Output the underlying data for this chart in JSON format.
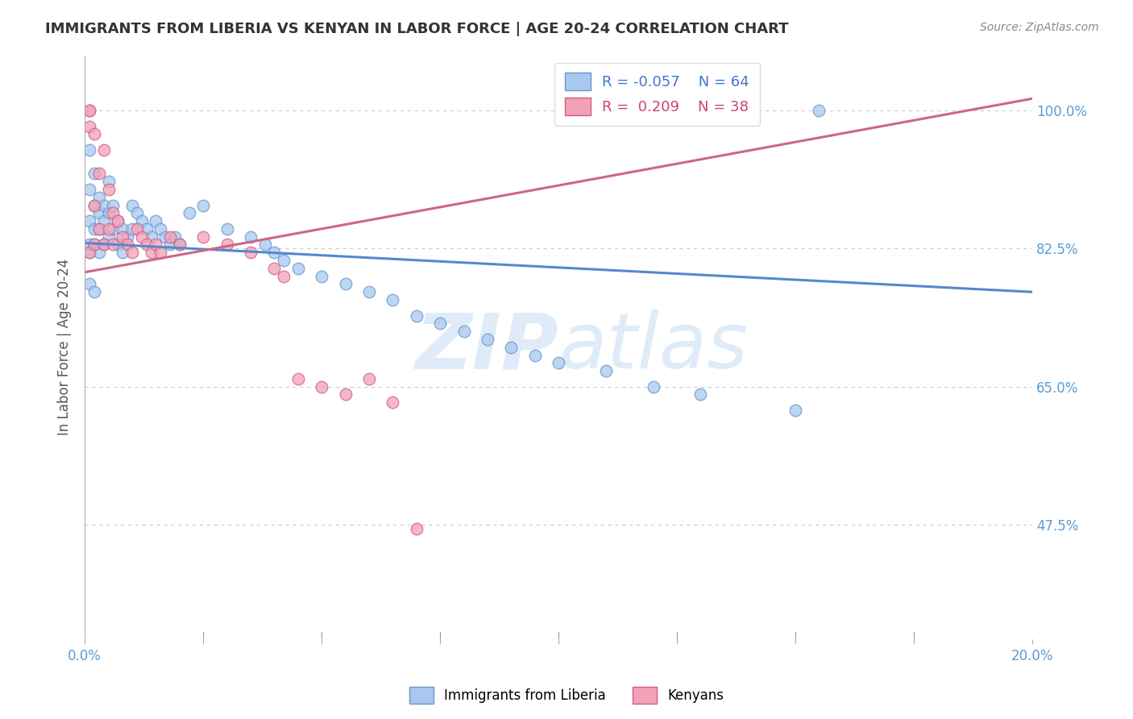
{
  "title": "IMMIGRANTS FROM LIBERIA VS KENYAN IN LABOR FORCE | AGE 20-24 CORRELATION CHART",
  "source": "Source: ZipAtlas.com",
  "ylabel": "In Labor Force | Age 20-24",
  "ytick_vals": [
    0.475,
    0.65,
    0.825,
    1.0
  ],
  "ytick_labels": [
    "47.5%",
    "65.0%",
    "82.5%",
    "100.0%"
  ],
  "xlim": [
    0.0,
    0.2
  ],
  "ylim": [
    0.33,
    1.07
  ],
  "legend_R_liberia": "-0.057",
  "legend_N_liberia": "64",
  "legend_R_kenyan": "0.209",
  "legend_N_kenyan": "38",
  "color_liberia": "#a8c8f0",
  "color_kenyan": "#f4a0b8",
  "color_liberia_edge": "#6699cc",
  "color_kenyan_edge": "#d06080",
  "color_liberia_line": "#5588cc",
  "color_kenyan_line": "#cc6688",
  "watermark_zip": "ZIP",
  "watermark_atlas": "atlas",
  "lib_x": [
    0.001,
    0.001,
    0.001,
    0.001,
    0.001,
    0.001,
    0.002,
    0.002,
    0.002,
    0.002,
    0.002,
    0.003,
    0.003,
    0.003,
    0.003,
    0.004,
    0.004,
    0.004,
    0.005,
    0.005,
    0.005,
    0.006,
    0.006,
    0.007,
    0.007,
    0.008,
    0.008,
    0.009,
    0.01,
    0.01,
    0.011,
    0.012,
    0.013,
    0.014,
    0.015,
    0.016,
    0.017,
    0.018,
    0.019,
    0.02,
    0.022,
    0.025,
    0.03,
    0.035,
    0.038,
    0.04,
    0.042,
    0.045,
    0.05,
    0.055,
    0.06,
    0.065,
    0.07,
    0.075,
    0.08,
    0.085,
    0.09,
    0.095,
    0.1,
    0.11,
    0.12,
    0.13,
    0.15,
    0.155
  ],
  "lib_y": [
    0.95,
    0.9,
    0.86,
    0.83,
    0.82,
    0.78,
    0.92,
    0.88,
    0.85,
    0.83,
    0.77,
    0.89,
    0.87,
    0.85,
    0.82,
    0.88,
    0.86,
    0.83,
    0.91,
    0.87,
    0.84,
    0.88,
    0.85,
    0.86,
    0.83,
    0.85,
    0.82,
    0.84,
    0.88,
    0.85,
    0.87,
    0.86,
    0.85,
    0.84,
    0.86,
    0.85,
    0.84,
    0.83,
    0.84,
    0.83,
    0.87,
    0.88,
    0.85,
    0.84,
    0.83,
    0.82,
    0.81,
    0.8,
    0.79,
    0.78,
    0.77,
    0.76,
    0.74,
    0.73,
    0.72,
    0.71,
    0.7,
    0.69,
    0.68,
    0.67,
    0.65,
    0.64,
    0.62,
    1.0
  ],
  "ken_x": [
    0.001,
    0.001,
    0.001,
    0.001,
    0.002,
    0.002,
    0.002,
    0.003,
    0.003,
    0.004,
    0.004,
    0.005,
    0.005,
    0.006,
    0.006,
    0.007,
    0.008,
    0.009,
    0.01,
    0.011,
    0.012,
    0.013,
    0.014,
    0.015,
    0.016,
    0.018,
    0.02,
    0.025,
    0.03,
    0.035,
    0.04,
    0.042,
    0.045,
    0.05,
    0.055,
    0.06,
    0.065,
    0.07
  ],
  "ken_y": [
    1.0,
    1.0,
    0.98,
    0.82,
    0.97,
    0.88,
    0.83,
    0.92,
    0.85,
    0.95,
    0.83,
    0.9,
    0.85,
    0.87,
    0.83,
    0.86,
    0.84,
    0.83,
    0.82,
    0.85,
    0.84,
    0.83,
    0.82,
    0.83,
    0.82,
    0.84,
    0.83,
    0.84,
    0.83,
    0.82,
    0.8,
    0.79,
    0.66,
    0.65,
    0.64,
    0.66,
    0.63,
    0.47
  ],
  "lib_line_x0": 0.0,
  "lib_line_x1": 0.2,
  "lib_line_y0": 0.832,
  "lib_line_y1": 0.77,
  "ken_line_x0": 0.0,
  "ken_line_x1": 0.2,
  "ken_line_y0": 0.795,
  "ken_line_y1": 1.015
}
